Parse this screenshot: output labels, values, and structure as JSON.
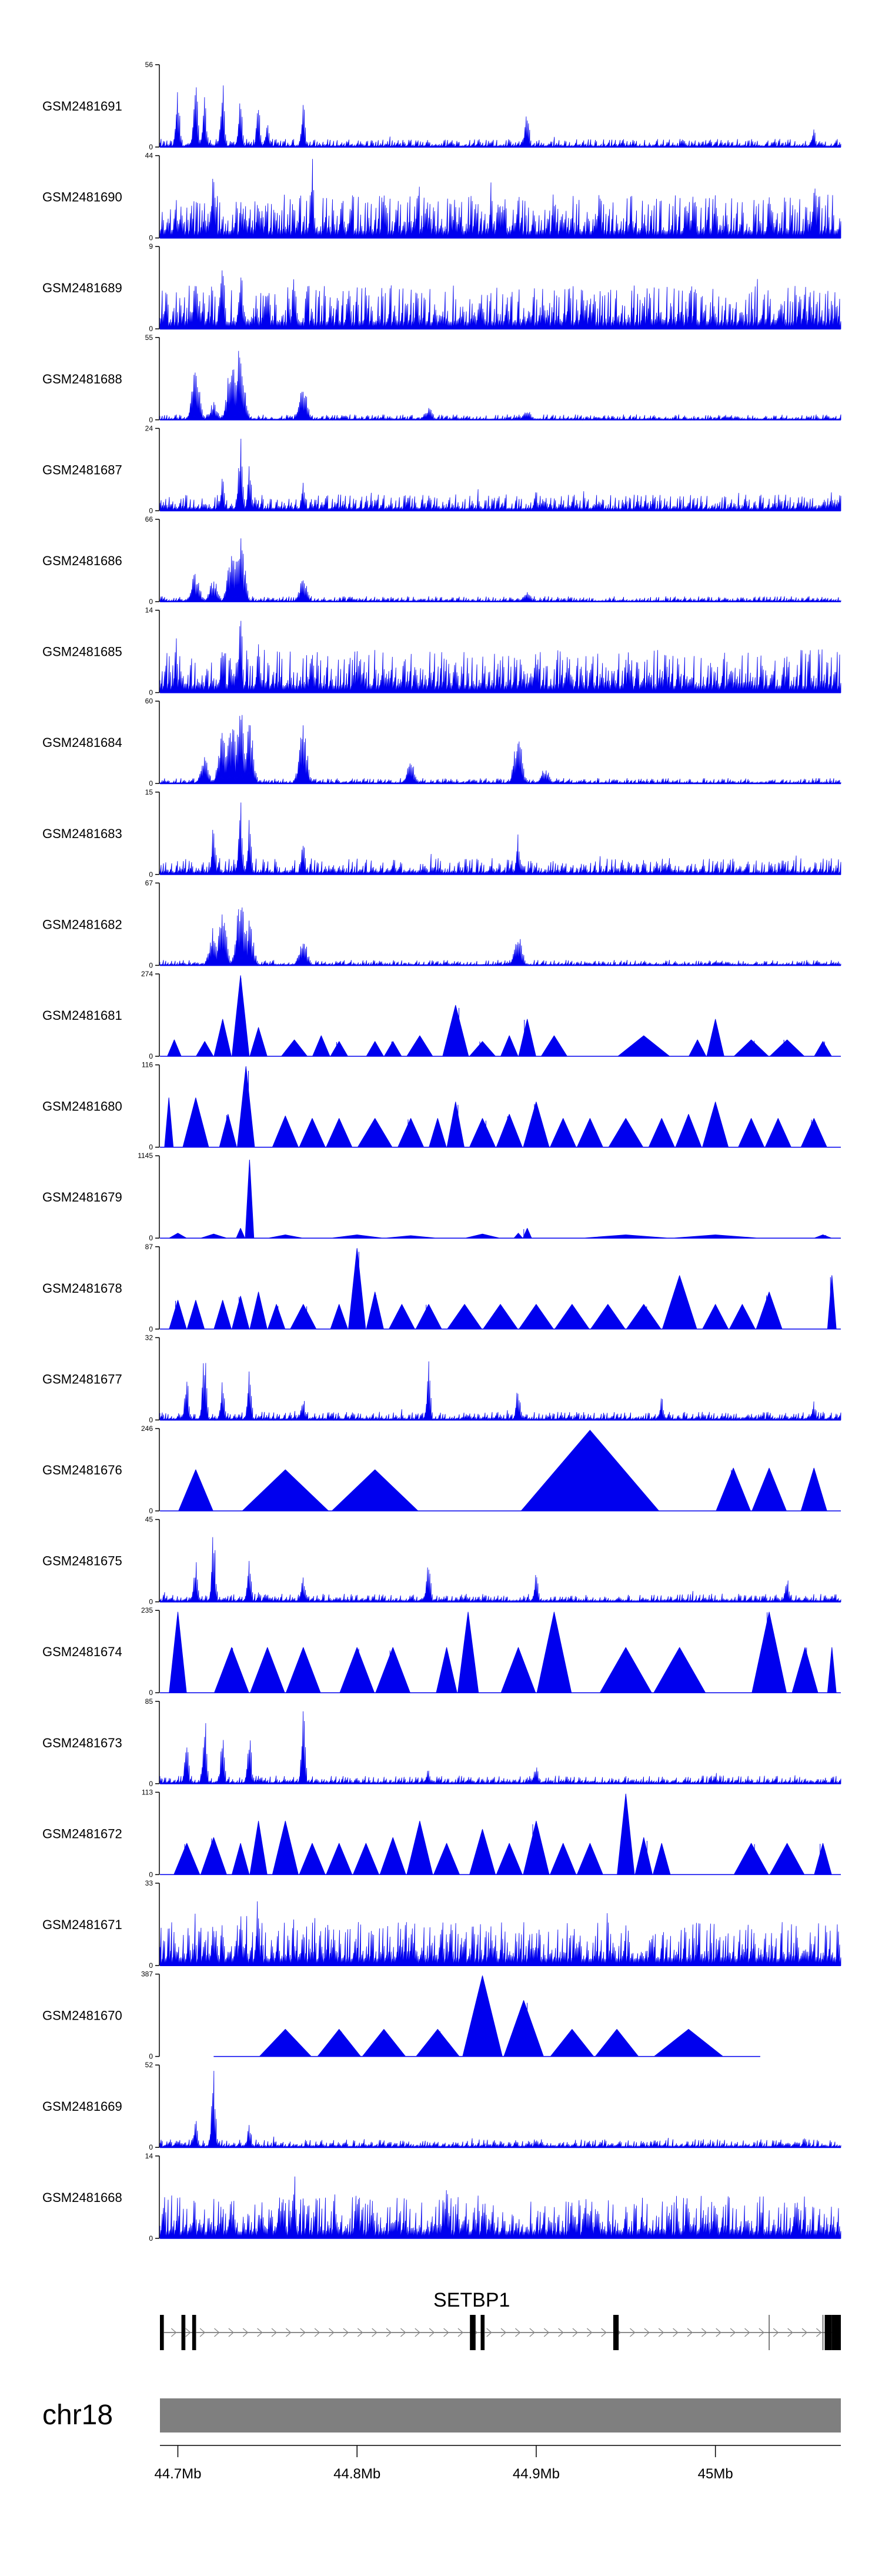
{
  "chart_data": {
    "type": "area",
    "title": "",
    "x_range": [
      44.69,
      45.07
    ],
    "x_unit": "Mb",
    "color": "#0000ee",
    "tracks": [
      {
        "name": "GSM2481691",
        "ymin": 0,
        "ymax": 56,
        "style": "spiky",
        "peaks": [
          [
            44.7,
            0.78
          ],
          [
            44.71,
            0.98
          ],
          [
            44.715,
            0.66
          ],
          [
            44.725,
            0.92
          ],
          [
            44.735,
            0.7
          ],
          [
            44.745,
            0.52
          ],
          [
            44.75,
            0.3
          ],
          [
            44.77,
            0.55
          ],
          [
            44.895,
            0.57
          ],
          [
            45.055,
            0.22
          ]
        ]
      },
      {
        "name": "GSM2481690",
        "ymin": 0,
        "ymax": 44,
        "style": "dense",
        "peaks": [
          [
            44.72,
            0.92
          ],
          [
            44.745,
            0.6
          ],
          [
            44.775,
            0.98
          ],
          [
            44.88,
            0.5
          ],
          [
            44.89,
            0.58
          ],
          [
            45.0,
            0.55
          ],
          [
            45.055,
            0.7
          ]
        ]
      },
      {
        "name": "GSM2481689",
        "ymin": 0,
        "ymax": 9,
        "style": "dense",
        "peaks": [
          [
            44.71,
            0.8
          ],
          [
            44.725,
            0.92
          ],
          [
            44.735,
            0.85
          ],
          [
            44.75,
            0.7
          ],
          [
            44.765,
            0.75
          ],
          [
            44.87,
            0.45
          ],
          [
            45.05,
            0.55
          ]
        ]
      },
      {
        "name": "GSM2481688",
        "ymin": 0,
        "ymax": 55,
        "style": "broad",
        "peaks": [
          [
            44.71,
            0.62
          ],
          [
            44.72,
            0.22
          ],
          [
            44.73,
            0.82
          ],
          [
            44.735,
            0.98
          ],
          [
            44.77,
            0.42
          ],
          [
            44.84,
            0.15
          ],
          [
            44.895,
            0.12
          ]
        ]
      },
      {
        "name": "GSM2481687",
        "ymin": 0,
        "ymax": 24,
        "style": "medium",
        "peaks": [
          [
            44.725,
            0.45
          ],
          [
            44.735,
            0.95
          ],
          [
            44.74,
            0.6
          ],
          [
            44.77,
            0.35
          ],
          [
            44.9,
            0.25
          ],
          [
            45.065,
            0.25
          ]
        ]
      },
      {
        "name": "GSM2481686",
        "ymin": 0,
        "ymax": 66,
        "style": "broad",
        "peaks": [
          [
            44.71,
            0.38
          ],
          [
            44.72,
            0.3
          ],
          [
            44.73,
            0.65
          ],
          [
            44.735,
            0.95
          ],
          [
            44.77,
            0.3
          ],
          [
            44.895,
            0.12
          ]
        ]
      },
      {
        "name": "GSM2481685",
        "ymin": 0,
        "ymax": 14,
        "style": "dense",
        "peaks": [
          [
            44.725,
            0.75
          ],
          [
            44.735,
            0.98
          ],
          [
            44.745,
            0.6
          ],
          [
            44.775,
            0.55
          ],
          [
            44.9,
            0.5
          ],
          [
            45.04,
            0.45
          ]
        ]
      },
      {
        "name": "GSM2481684",
        "ymin": 0,
        "ymax": 60,
        "style": "broad",
        "peaks": [
          [
            44.715,
            0.35
          ],
          [
            44.725,
            0.7
          ],
          [
            44.73,
            0.9
          ],
          [
            44.735,
            0.98
          ],
          [
            44.74,
            0.75
          ],
          [
            44.77,
            0.75
          ],
          [
            44.83,
            0.28
          ],
          [
            44.89,
            0.7
          ],
          [
            44.905,
            0.2
          ]
        ]
      },
      {
        "name": "GSM2481683",
        "ymin": 0,
        "ymax": 15,
        "style": "medium",
        "peaks": [
          [
            44.72,
            0.65
          ],
          [
            44.735,
            0.98
          ],
          [
            44.74,
            0.7
          ],
          [
            44.77,
            0.4
          ],
          [
            44.89,
            0.52
          ]
        ]
      },
      {
        "name": "GSM2481682",
        "ymin": 0,
        "ymax": 67,
        "style": "broad",
        "peaks": [
          [
            44.72,
            0.48
          ],
          [
            44.725,
            0.65
          ],
          [
            44.735,
            0.98
          ],
          [
            44.74,
            0.55
          ],
          [
            44.77,
            0.35
          ],
          [
            44.89,
            0.38
          ]
        ]
      },
      {
        "name": "GSM2481681",
        "ymin": 0,
        "ymax": 274,
        "style": "tri",
        "peaks": [
          [
            44.698,
            0.2
          ],
          [
            44.715,
            0.18
          ],
          [
            44.725,
            0.45
          ],
          [
            44.735,
            0.98
          ],
          [
            44.745,
            0.35
          ],
          [
            44.765,
            0.2
          ],
          [
            44.78,
            0.25
          ],
          [
            44.79,
            0.18
          ],
          [
            44.81,
            0.18
          ],
          [
            44.82,
            0.18
          ],
          [
            44.835,
            0.25
          ],
          [
            44.855,
            0.62
          ],
          [
            44.87,
            0.18
          ],
          [
            44.885,
            0.25
          ],
          [
            44.895,
            0.45
          ],
          [
            44.91,
            0.25
          ],
          [
            44.96,
            0.25
          ],
          [
            44.99,
            0.2
          ],
          [
            45.0,
            0.45
          ],
          [
            45.02,
            0.2
          ],
          [
            45.04,
            0.2
          ],
          [
            45.06,
            0.18
          ]
        ]
      },
      {
        "name": "GSM2481680",
        "ymin": 0,
        "ymax": 116,
        "style": "tri",
        "peaks": [
          [
            44.695,
            0.6
          ],
          [
            44.71,
            0.6
          ],
          [
            44.728,
            0.4
          ],
          [
            44.738,
            0.98
          ],
          [
            44.76,
            0.38
          ],
          [
            44.775,
            0.35
          ],
          [
            44.79,
            0.35
          ],
          [
            44.81,
            0.35
          ],
          [
            44.83,
            0.35
          ],
          [
            44.845,
            0.35
          ],
          [
            44.855,
            0.55
          ],
          [
            44.87,
            0.35
          ],
          [
            44.885,
            0.4
          ],
          [
            44.9,
            0.55
          ],
          [
            44.915,
            0.35
          ],
          [
            44.93,
            0.35
          ],
          [
            44.95,
            0.35
          ],
          [
            44.97,
            0.35
          ],
          [
            44.985,
            0.4
          ],
          [
            45.0,
            0.55
          ],
          [
            45.02,
            0.35
          ],
          [
            45.035,
            0.35
          ],
          [
            45.055,
            0.35
          ]
        ]
      },
      {
        "name": "GSM2481679",
        "ymin": 0,
        "ymax": 1145,
        "style": "tri",
        "peaks": [
          [
            44.7,
            0.06
          ],
          [
            44.72,
            0.05
          ],
          [
            44.735,
            0.12
          ],
          [
            44.74,
            0.95
          ],
          [
            44.76,
            0.04
          ],
          [
            44.8,
            0.04
          ],
          [
            44.83,
            0.03
          ],
          [
            44.87,
            0.05
          ],
          [
            44.89,
            0.06
          ],
          [
            44.895,
            0.12
          ],
          [
            44.95,
            0.04
          ],
          [
            45.0,
            0.04
          ],
          [
            45.06,
            0.04
          ]
        ]
      },
      {
        "name": "GSM2481678",
        "ymin": 0,
        "ymax": 87,
        "style": "tri",
        "peaks": [
          [
            44.7,
            0.35
          ],
          [
            44.71,
            0.35
          ],
          [
            44.725,
            0.35
          ],
          [
            44.735,
            0.4
          ],
          [
            44.745,
            0.45
          ],
          [
            44.755,
            0.3
          ],
          [
            44.77,
            0.3
          ],
          [
            44.79,
            0.3
          ],
          [
            44.8,
            0.98
          ],
          [
            44.81,
            0.45
          ],
          [
            44.825,
            0.3
          ],
          [
            44.84,
            0.3
          ],
          [
            44.86,
            0.3
          ],
          [
            44.88,
            0.3
          ],
          [
            44.9,
            0.3
          ],
          [
            44.92,
            0.3
          ],
          [
            44.94,
            0.3
          ],
          [
            44.96,
            0.3
          ],
          [
            44.98,
            0.65
          ],
          [
            45.0,
            0.3
          ],
          [
            45.015,
            0.3
          ],
          [
            45.03,
            0.45
          ],
          [
            45.065,
            0.65
          ]
        ]
      },
      {
        "name": "GSM2481677",
        "ymin": 0,
        "ymax": 32,
        "style": "spiky",
        "peaks": [
          [
            44.705,
            0.55
          ],
          [
            44.715,
            0.98
          ],
          [
            44.725,
            0.5
          ],
          [
            44.74,
            0.6
          ],
          [
            44.77,
            0.3
          ],
          [
            44.84,
            0.72
          ],
          [
            44.89,
            0.45
          ],
          [
            44.97,
            0.3
          ],
          [
            45.055,
            0.25
          ]
        ]
      },
      {
        "name": "GSM2481676",
        "ymin": 0,
        "ymax": 246,
        "style": "tri",
        "peaks": [
          [
            44.71,
            0.5
          ],
          [
            44.76,
            0.5
          ],
          [
            44.81,
            0.5
          ],
          [
            44.93,
            0.98
          ],
          [
            45.01,
            0.52
          ],
          [
            45.03,
            0.52
          ],
          [
            45.055,
            0.52
          ]
        ]
      },
      {
        "name": "GSM2481675",
        "ymin": 0,
        "ymax": 45,
        "style": "spiky",
        "peaks": [
          [
            44.71,
            0.55
          ],
          [
            44.72,
            0.98
          ],
          [
            44.74,
            0.6
          ],
          [
            44.77,
            0.3
          ],
          [
            44.84,
            0.6
          ],
          [
            44.9,
            0.4
          ],
          [
            45.04,
            0.35
          ]
        ]
      },
      {
        "name": "GSM2481674",
        "ymin": 0,
        "ymax": 235,
        "style": "tri",
        "peaks": [
          [
            44.7,
            0.98
          ],
          [
            44.73,
            0.55
          ],
          [
            44.75,
            0.55
          ],
          [
            44.77,
            0.55
          ],
          [
            44.8,
            0.55
          ],
          [
            44.82,
            0.55
          ],
          [
            44.85,
            0.55
          ],
          [
            44.862,
            0.98
          ],
          [
            44.89,
            0.55
          ],
          [
            44.91,
            0.98
          ],
          [
            44.95,
            0.55
          ],
          [
            44.98,
            0.55
          ],
          [
            45.03,
            0.98
          ],
          [
            45.05,
            0.55
          ],
          [
            45.065,
            0.55
          ]
        ]
      },
      {
        "name": "GSM2481673",
        "ymin": 0,
        "ymax": 85,
        "style": "spiky",
        "peaks": [
          [
            44.705,
            0.52
          ],
          [
            44.715,
            0.85
          ],
          [
            44.725,
            0.6
          ],
          [
            44.74,
            0.72
          ],
          [
            44.77,
            0.98
          ],
          [
            44.84,
            0.2
          ],
          [
            44.9,
            0.25
          ],
          [
            45.0,
            0.15
          ]
        ]
      },
      {
        "name": "GSM2481672",
        "ymin": 0,
        "ymax": 113,
        "style": "tri",
        "peaks": [
          [
            44.705,
            0.38
          ],
          [
            44.72,
            0.45
          ],
          [
            44.735,
            0.38
          ],
          [
            44.745,
            0.65
          ],
          [
            44.76,
            0.65
          ],
          [
            44.775,
            0.38
          ],
          [
            44.79,
            0.38
          ],
          [
            44.805,
            0.38
          ],
          [
            44.82,
            0.45
          ],
          [
            44.835,
            0.65
          ],
          [
            44.85,
            0.38
          ],
          [
            44.87,
            0.55
          ],
          [
            44.885,
            0.38
          ],
          [
            44.9,
            0.65
          ],
          [
            44.915,
            0.38
          ],
          [
            44.93,
            0.38
          ],
          [
            44.95,
            0.98
          ],
          [
            44.96,
            0.45
          ],
          [
            44.97,
            0.38
          ],
          [
            45.02,
            0.38
          ],
          [
            45.04,
            0.38
          ],
          [
            45.06,
            0.38
          ]
        ]
      },
      {
        "name": "GSM2481671",
        "ymin": 0,
        "ymax": 33,
        "style": "dense",
        "peaks": [
          [
            44.72,
            0.5
          ],
          [
            44.735,
            0.75
          ],
          [
            44.745,
            0.98
          ],
          [
            44.77,
            0.45
          ],
          [
            44.9,
            0.35
          ],
          [
            45.05,
            0.3
          ]
        ]
      },
      {
        "name": "GSM2481670",
        "ymin": 0,
        "ymax": 387,
        "style": "tri",
        "line_range": [
          44.72,
          45.025
        ],
        "peaks": [
          [
            44.76,
            0.33
          ],
          [
            44.79,
            0.33
          ],
          [
            44.815,
            0.33
          ],
          [
            44.845,
            0.33
          ],
          [
            44.87,
            0.98
          ],
          [
            44.893,
            0.68
          ],
          [
            44.92,
            0.33
          ],
          [
            44.945,
            0.33
          ],
          [
            44.985,
            0.33
          ]
        ]
      },
      {
        "name": "GSM2481669",
        "ymin": 0,
        "ymax": 52,
        "style": "spiky",
        "peaks": [
          [
            44.71,
            0.4
          ],
          [
            44.72,
            0.95
          ],
          [
            44.74,
            0.3
          ],
          [
            44.9,
            0.12
          ],
          [
            45.05,
            0.15
          ]
        ]
      },
      {
        "name": "GSM2481668",
        "ymin": 0,
        "ymax": 14,
        "style": "dense",
        "peaks": [
          [
            44.73,
            0.6
          ],
          [
            44.765,
            0.88
          ],
          [
            44.8,
            0.62
          ],
          [
            44.85,
            0.68
          ],
          [
            44.92,
            0.55
          ],
          [
            45.0,
            0.6
          ],
          [
            45.045,
            0.55
          ]
        ]
      }
    ],
    "gene": {
      "name": "SETBP1",
      "start": 44.69,
      "end": 45.07,
      "exons": [
        [
          44.69,
          44.692
        ],
        [
          44.702,
          44.704
        ],
        [
          44.708,
          44.71
        ],
        [
          44.863,
          44.866
        ],
        [
          44.869,
          44.871
        ],
        [
          44.943,
          44.946
        ],
        [
          45.061,
          45.065
        ],
        [
          45.065,
          45.07
        ]
      ]
    },
    "chromosome": {
      "name": "chr18"
    },
    "x_ticks": [
      {
        "value": 44.7,
        "label": "44.7Mb"
      },
      {
        "value": 44.8,
        "label": "44.8Mb"
      },
      {
        "value": 44.9,
        "label": "44.9Mb"
      },
      {
        "value": 45.0,
        "label": "45Mb"
      }
    ]
  }
}
